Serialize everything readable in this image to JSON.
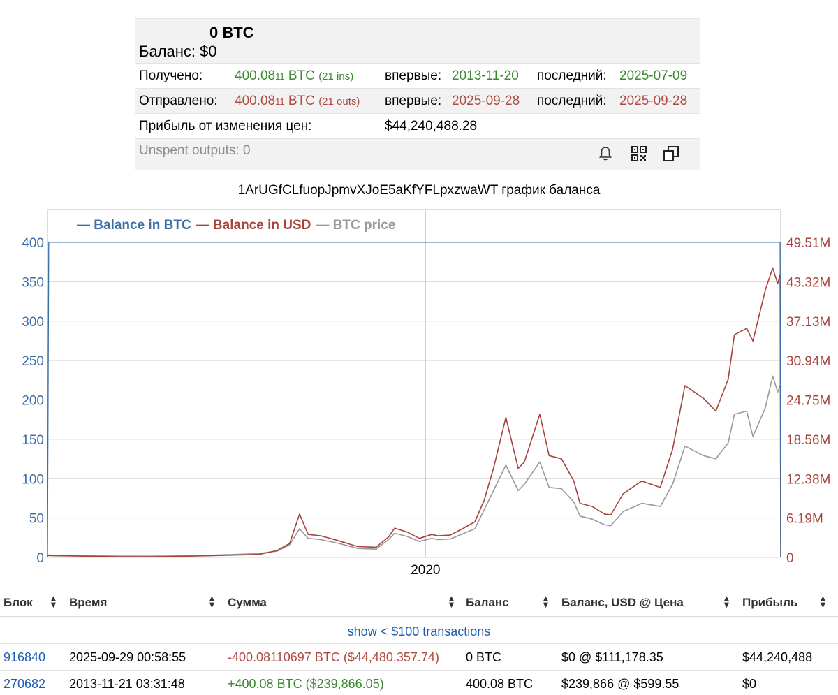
{
  "summary": {
    "btc_balance": "0 BTC",
    "balance_label": "Баланс:",
    "balance_usd": "$0",
    "received": {
      "label": "Получено:",
      "amount_main": "400.08",
      "amount_small": "11",
      "unit": "BTC",
      "count": "(21 ins)",
      "first_label": "впервые:",
      "first_date": "2013-11-20",
      "last_label": "последний:",
      "last_date": "2025-07-09"
    },
    "sent": {
      "label": "Отправлено:",
      "amount_main": "400.08",
      "amount_small": "11",
      "unit": "BTC",
      "count": "(21 outs)",
      "first_label": "впервые:",
      "first_date": "2025-09-28",
      "last_label": "последний:",
      "last_date": "2025-09-28"
    },
    "profit_label": "Прибыль от изменения цен:",
    "profit_value": "$44,240,488.28",
    "unspent": "Unspent outputs: 0",
    "icons": [
      "bell-icon",
      "qr-code-icon",
      "copy-icon"
    ]
  },
  "chart_title": "1ArUGfCLfuopJpmvXJoE5aKfYFLpxzwaWT график баланса",
  "chart_data": {
    "type": "line",
    "legend": [
      {
        "name": "Balance in BTC",
        "color": "#3e6ea6"
      },
      {
        "name": "Balance in USD",
        "color": "#a8433b"
      },
      {
        "name": "BTC price",
        "color": "#999999"
      }
    ],
    "legend_position": "top-left",
    "grid": true,
    "x_tick_labels": [
      "2020"
    ],
    "y_left_ticks": [
      "0",
      "50",
      "100",
      "150",
      "200",
      "250",
      "300",
      "350",
      "400"
    ],
    "y_left_range": [
      0,
      400
    ],
    "y_right_ticks": [
      "0",
      "6.19M",
      "12.38M",
      "18.56M",
      "24.75M",
      "30.94M",
      "37.13M",
      "43.32M",
      "49.51M"
    ],
    "y_right_range": [
      0,
      49.51
    ],
    "x_range": [
      2013.88,
      2025.75
    ],
    "series": [
      {
        "name": "Balance in BTC",
        "x": [
          2013.88,
          2013.9,
          2025.49,
          2025.74,
          2025.75
        ],
        "values": [
          0,
          400.08,
          400.08,
          400.08,
          0
        ]
      },
      {
        "name": "Balance in USD",
        "x": [
          2013.88,
          2014.0,
          2014.5,
          2015.0,
          2015.5,
          2016.0,
          2016.5,
          2017.0,
          2017.3,
          2017.6,
          2017.8,
          2017.96,
          2018.1,
          2018.3,
          2018.6,
          2018.9,
          2019.2,
          2019.4,
          2019.5,
          2019.7,
          2019.9,
          2020.1,
          2020.2,
          2020.4,
          2020.6,
          2020.8,
          2020.95,
          2021.1,
          2021.3,
          2021.4,
          2021.5,
          2021.6,
          2021.85,
          2022.0,
          2022.2,
          2022.4,
          2022.5,
          2022.7,
          2022.9,
          2023.0,
          2023.2,
          2023.5,
          2023.8,
          2024.0,
          2024.2,
          2024.5,
          2024.7,
          2024.9,
          2025.0,
          2025.2,
          2025.3,
          2025.5,
          2025.62,
          2025.7,
          2025.74,
          2025.75
        ],
        "values": [
          0.3,
          0.26,
          0.2,
          0.11,
          0.1,
          0.16,
          0.26,
          0.38,
          0.46,
          1.1,
          2.2,
          6.8,
          3.6,
          3.4,
          2.6,
          1.7,
          1.6,
          3.2,
          4.6,
          4.0,
          3.0,
          3.6,
          3.4,
          3.5,
          4.5,
          5.6,
          9.0,
          14.0,
          22.0,
          18.0,
          14.0,
          15.0,
          22.5,
          16.0,
          15.5,
          12.0,
          8.5,
          8.0,
          6.8,
          6.7,
          10.0,
          12.0,
          11.0,
          17.0,
          27.0,
          25.0,
          23.0,
          28.0,
          35.0,
          36.0,
          34.0,
          42.0,
          45.5,
          43.0,
          44.5,
          0
        ]
      },
      {
        "name": "BTC price",
        "x": [
          2013.88,
          2014.0,
          2014.5,
          2015.0,
          2015.5,
          2016.0,
          2016.5,
          2017.0,
          2017.3,
          2017.6,
          2017.8,
          2017.96,
          2018.1,
          2018.3,
          2018.6,
          2018.9,
          2019.2,
          2019.4,
          2019.5,
          2019.7,
          2019.9,
          2020.1,
          2020.2,
          2020.4,
          2020.6,
          2020.8,
          2020.95,
          2021.1,
          2021.3,
          2021.4,
          2021.5,
          2021.6,
          2021.85,
          2022.0,
          2022.2,
          2022.4,
          2022.5,
          2022.7,
          2022.9,
          2023.0,
          2023.2,
          2023.5,
          2023.8,
          2024.0,
          2024.2,
          2024.5,
          2024.7,
          2024.9,
          2025.0,
          2025.2,
          2025.3,
          2025.5,
          2025.62,
          2025.7,
          2025.74
        ],
        "values": [
          0.4,
          0.34,
          0.3,
          0.22,
          0.2,
          0.24,
          0.34,
          0.5,
          0.6,
          1.0,
          2.0,
          4.5,
          3.0,
          2.8,
          2.2,
          1.4,
          1.3,
          2.8,
          3.8,
          3.3,
          2.5,
          3.0,
          2.8,
          2.9,
          3.7,
          4.5,
          7.5,
          10.5,
          14.5,
          12.5,
          10.5,
          11.5,
          15.0,
          11.0,
          10.8,
          8.7,
          6.5,
          6.0,
          5.1,
          5.0,
          7.2,
          8.5,
          8.0,
          11.5,
          17.5,
          16.0,
          15.5,
          18.0,
          22.5,
          23.0,
          19.0,
          23.5,
          28.5,
          26.0,
          27.0
        ]
      }
    ]
  },
  "table": {
    "columns": [
      "Блок",
      "Время",
      "Сумма",
      "Баланс",
      "Баланс, USD @ Цена",
      "Прибыль"
    ],
    "show_small": "show < $100 transactions",
    "rows": [
      {
        "block": "916840",
        "time": "2025-09-29 00:58:55",
        "amount_main": "-400.08",
        "amount_small": "110697",
        "amount_unit": "BTC",
        "amount_usd": "($44,480,357.74)",
        "balance": "0 BTC",
        "balance_usd": "$0 @ $111,178.35",
        "profit": "$44,240,488"
      },
      {
        "block": "270682",
        "time": "2013-11-21 03:31:48",
        "amount_main": "+400.08",
        "amount_small": "",
        "amount_unit": "BTC",
        "amount_usd": "($239,866.05)",
        "balance": "400.08 BTC",
        "balance_usd": "$239,866 @ $599.55",
        "profit": "$0"
      }
    ]
  }
}
